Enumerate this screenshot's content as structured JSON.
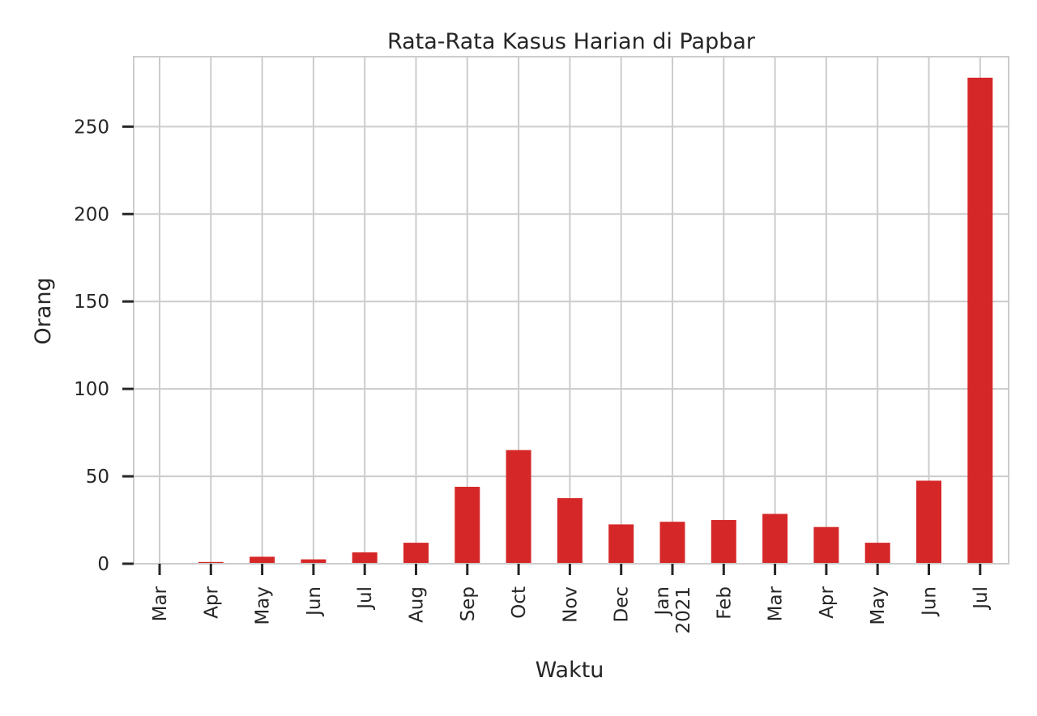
{
  "chart_data": {
    "type": "bar",
    "title": "Rata-Rata Kasus Harian di Papbar",
    "xlabel": "Waktu",
    "ylabel": "Orang",
    "categories": [
      "Mar",
      "Apr",
      "May",
      "Jun",
      "Jul",
      "Aug",
      "Sep",
      "Oct",
      "Nov",
      "Dec",
      "Jan\n2021",
      "Feb",
      "Mar",
      "Apr",
      "May",
      "Jun",
      "Jul"
    ],
    "values": [
      0,
      1,
      4,
      2.5,
      6.5,
      12,
      44,
      65,
      37.5,
      22.5,
      24,
      25,
      28.5,
      21,
      12,
      47.5,
      278
    ],
    "ylim": [
      0,
      290
    ],
    "yticks": [
      0,
      50,
      100,
      150,
      200,
      250
    ],
    "color": "#d62728",
    "grid": true
  }
}
